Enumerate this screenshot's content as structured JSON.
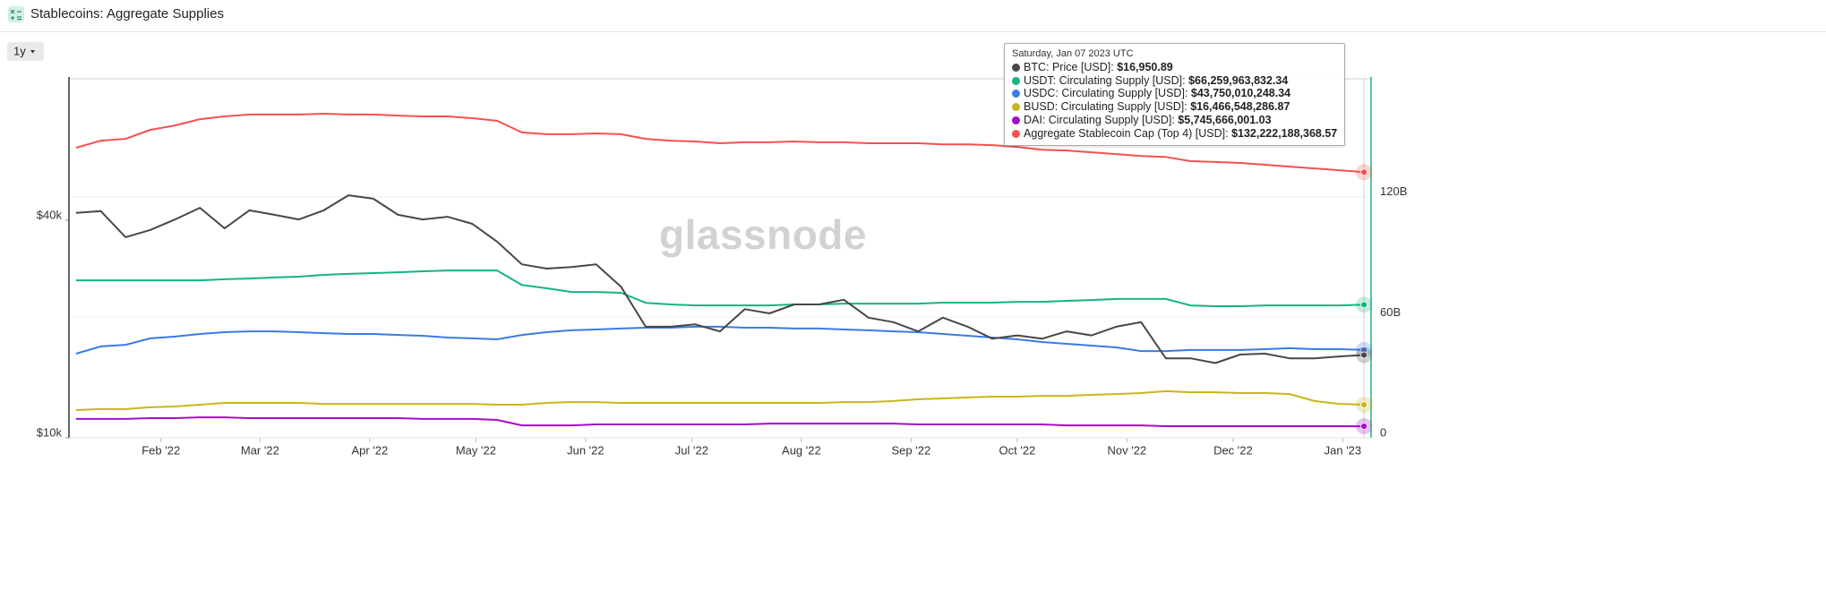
{
  "title": "Stablecoins: Aggregate Supplies",
  "range_selector": "1y",
  "chart_data": {
    "type": "line",
    "watermark": "glassnode",
    "x": [
      "2022-01-08",
      "2022-01-15",
      "2022-01-22",
      "2022-01-29",
      "2022-02-05",
      "2022-02-12",
      "2022-02-19",
      "2022-02-26",
      "2022-03-05",
      "2022-03-12",
      "2022-03-19",
      "2022-03-26",
      "2022-04-02",
      "2022-04-09",
      "2022-04-16",
      "2022-04-23",
      "2022-04-30",
      "2022-05-07",
      "2022-05-14",
      "2022-05-21",
      "2022-05-28",
      "2022-06-04",
      "2022-06-11",
      "2022-06-18",
      "2022-06-25",
      "2022-07-02",
      "2022-07-09",
      "2022-07-16",
      "2022-07-23",
      "2022-07-30",
      "2022-08-06",
      "2022-08-13",
      "2022-08-20",
      "2022-08-27",
      "2022-09-03",
      "2022-09-10",
      "2022-09-17",
      "2022-09-24",
      "2022-10-01",
      "2022-10-08",
      "2022-10-15",
      "2022-10-22",
      "2022-10-29",
      "2022-11-05",
      "2022-11-12",
      "2022-11-19",
      "2022-11-26",
      "2022-12-03",
      "2022-12-10",
      "2022-12-17",
      "2022-12-24",
      "2022-12-31",
      "2023-01-07"
    ],
    "xlim": [
      "2022-01-06",
      "2023-01-09"
    ],
    "xticks": [
      {
        "value": "2022-02-01",
        "label": "Feb '22"
      },
      {
        "value": "2022-03-01",
        "label": "Mar '22"
      },
      {
        "value": "2022-04-01",
        "label": "Apr '22"
      },
      {
        "value": "2022-05-01",
        "label": "May '22"
      },
      {
        "value": "2022-06-01",
        "label": "Jun '22"
      },
      {
        "value": "2022-07-01",
        "label": "Jul '22"
      },
      {
        "value": "2022-08-01",
        "label": "Aug '22"
      },
      {
        "value": "2022-09-01",
        "label": "Sep '22"
      },
      {
        "value": "2022-10-01",
        "label": "Oct '22"
      },
      {
        "value": "2022-11-01",
        "label": "Nov '22"
      },
      {
        "value": "2022-12-01",
        "label": "Dec '22"
      },
      {
        "value": "2023-01-01",
        "label": "Jan '23"
      }
    ],
    "ylim": [
      10000,
      98500
    ],
    "ylog": true,
    "yticks": [
      {
        "value": 10000,
        "label": "$10k"
      },
      {
        "value": 40000,
        "label": "$40k"
      }
    ],
    "y2lim": [
      0,
      178.7
    ],
    "y2ticks": [
      0,
      {
        "value": 60,
        "label": "60B"
      },
      {
        "value": 120,
        "label": "120B"
      }
    ],
    "grid": true,
    "series": [
      {
        "name": "BTC: Price [USD]",
        "color": "#474747",
        "axis": "y",
        "values": [
          41900,
          42400,
          35900,
          37600,
          40200,
          43300,
          38000,
          42600,
          41400,
          40200,
          42600,
          46900,
          45900,
          41400,
          40200,
          40900,
          39100,
          34900,
          30200,
          29400,
          29700,
          30200,
          26200,
          20300,
          20300,
          20600,
          19700,
          22700,
          22100,
          23400,
          23400,
          24100,
          21500,
          20900,
          19700,
          21500,
          20300,
          18800,
          19200,
          18800,
          19700,
          19200,
          20300,
          20900,
          16600,
          16600,
          16100,
          17000,
          17100,
          16600,
          16600,
          16800,
          16950.89
        ]
      },
      {
        "name": "USDT: Circulating Supply [USD]",
        "color": "#13b57f",
        "axis": "y2",
        "values": [
          78.4,
          78.4,
          78.4,
          78.4,
          78.4,
          78.4,
          78.9,
          79.3,
          79.8,
          80.2,
          81.1,
          81.6,
          82.0,
          82.4,
          82.9,
          83.3,
          83.3,
          83.3,
          76.1,
          74.4,
          72.6,
          72.6,
          72.2,
          67.2,
          66.4,
          65.9,
          65.9,
          65.9,
          65.9,
          66.4,
          66.4,
          66.8,
          66.8,
          66.8,
          66.8,
          67.3,
          67.3,
          67.3,
          67.7,
          67.7,
          68.2,
          68.6,
          69.1,
          69.1,
          69.1,
          65.9,
          65.5,
          65.5,
          65.9,
          65.9,
          65.9,
          65.9,
          66.25996383234
        ]
      },
      {
        "name": "USDC: Circulating Supply [USD]",
        "color": "#3a7be6",
        "axis": "y2",
        "values": [
          41.9,
          45.5,
          46.3,
          49.5,
          50.4,
          51.7,
          52.6,
          53.0,
          53.0,
          52.6,
          52.1,
          51.7,
          51.7,
          51.2,
          50.8,
          49.9,
          49.5,
          49.0,
          51.2,
          52.6,
          53.5,
          53.9,
          54.4,
          54.8,
          54.8,
          55.3,
          55.3,
          54.8,
          54.8,
          54.4,
          54.4,
          53.9,
          53.5,
          53.0,
          52.6,
          51.7,
          50.8,
          49.9,
          49.0,
          47.7,
          46.8,
          45.9,
          45.0,
          43.2,
          43.2,
          43.7,
          43.7,
          43.7,
          44.1,
          44.6,
          44.1,
          44.1,
          43.75001024834
        ]
      },
      {
        "name": "BUSD: Circulating Supply [USD]",
        "color": "#c9b51b",
        "axis": "y2",
        "values": [
          13.8,
          14.3,
          14.3,
          15.2,
          15.6,
          16.5,
          17.4,
          17.4,
          17.4,
          17.4,
          16.9,
          16.9,
          16.9,
          16.9,
          16.9,
          16.9,
          16.9,
          16.5,
          16.5,
          17.4,
          17.8,
          17.8,
          17.4,
          17.4,
          17.4,
          17.4,
          17.4,
          17.4,
          17.4,
          17.4,
          17.4,
          17.8,
          17.8,
          18.3,
          19.2,
          19.6,
          20.1,
          20.5,
          20.5,
          20.9,
          20.9,
          21.4,
          21.8,
          22.3,
          23.2,
          22.7,
          22.7,
          22.3,
          22.3,
          21.8,
          18.3,
          16.9,
          16.46654828687
        ]
      },
      {
        "name": "DAI: Circulating Supply [USD]",
        "color": "#a20fc9",
        "axis": "y2",
        "values": [
          9.4,
          9.4,
          9.4,
          9.8,
          9.8,
          10.2,
          10.2,
          9.8,
          9.8,
          9.8,
          9.8,
          9.8,
          9.8,
          9.8,
          9.4,
          9.4,
          9.4,
          8.9,
          6.2,
          6.2,
          6.2,
          6.7,
          6.7,
          6.7,
          6.7,
          6.7,
          6.7,
          6.7,
          7.1,
          7.1,
          7.1,
          7.1,
          7.1,
          7.1,
          6.7,
          6.7,
          6.7,
          6.7,
          6.7,
          6.7,
          6.2,
          6.2,
          6.2,
          6.2,
          5.8,
          5.8,
          5.8,
          5.8,
          5.8,
          5.8,
          5.8,
          5.8,
          5.74566600103
        ]
      },
      {
        "name": "Aggregate Stablecoin Cap (Top 4) [USD]",
        "color": "#f5504f",
        "axis": "y2",
        "values": [
          144.4,
          147.9,
          148.8,
          153.3,
          155.5,
          158.6,
          160.0,
          160.9,
          160.9,
          160.9,
          161.3,
          160.9,
          160.9,
          160.4,
          160.0,
          160.0,
          159.1,
          157.8,
          152.0,
          151.1,
          151.1,
          151.5,
          151.1,
          148.8,
          147.9,
          147.5,
          146.6,
          147.1,
          147.1,
          147.5,
          147.1,
          147.1,
          146.6,
          146.6,
          146.6,
          146.1,
          146.1,
          145.7,
          144.8,
          143.4,
          143.0,
          142.1,
          141.2,
          140.3,
          139.8,
          137.7,
          137.3,
          136.8,
          135.9,
          135.0,
          134.1,
          133.2,
          132.22218836857
        ]
      }
    ],
    "tooltip": {
      "date": "Saturday, Jan 07 2023 UTC",
      "values": [
        "$16,950.89",
        "$66,259,963,832.34",
        "$43,750,010,248.34",
        "$16,466,548,286.87",
        "$5,745,666,001.03",
        "$132,222,188,368.57"
      ]
    }
  }
}
